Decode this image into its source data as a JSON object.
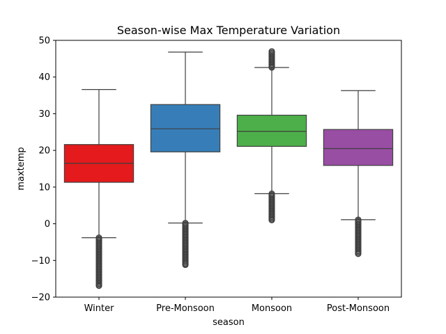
{
  "chart_data": {
    "type": "box",
    "title": "Season-wise Max Temperature Variation",
    "xlabel": "season",
    "ylabel": "maxtemp",
    "ylim": [
      -20,
      50
    ],
    "yticks": [
      -20,
      -10,
      0,
      10,
      20,
      30,
      40,
      50
    ],
    "grid": false,
    "legend": "none",
    "categories": [
      "Winter",
      "Pre-Monsoon",
      "Monsoon",
      "Post-Monsoon"
    ],
    "boxes": [
      {
        "category": "Winter",
        "color": "#e41a1c",
        "whisker_low": -3.8,
        "q1": 11.3,
        "median": 16.5,
        "q3": 21.6,
        "whisker_high": 36.6,
        "outlier_range": [
          -16.9,
          -3.8
        ]
      },
      {
        "category": "Pre-Monsoon",
        "color": "#377eb8",
        "whisker_low": 0.2,
        "q1": 19.6,
        "median": 25.9,
        "q3": 32.5,
        "whisker_high": 46.8,
        "outlier_range": [
          -11.2,
          0.2
        ]
      },
      {
        "category": "Monsoon",
        "color": "#4daf4a",
        "whisker_low": 8.2,
        "q1": 21.1,
        "median": 25.2,
        "q3": 29.6,
        "whisker_high": 42.6,
        "outlier_range": [
          1.0,
          8.2
        ],
        "outlier_range_high": [
          42.6,
          47.0
        ]
      },
      {
        "category": "Post-Monsoon",
        "color": "#984ea3",
        "whisker_low": 1.1,
        "q1": 15.9,
        "median": 20.5,
        "q3": 25.7,
        "whisker_high": 36.3,
        "outlier_range": [
          -8.2,
          1.1
        ]
      }
    ]
  }
}
